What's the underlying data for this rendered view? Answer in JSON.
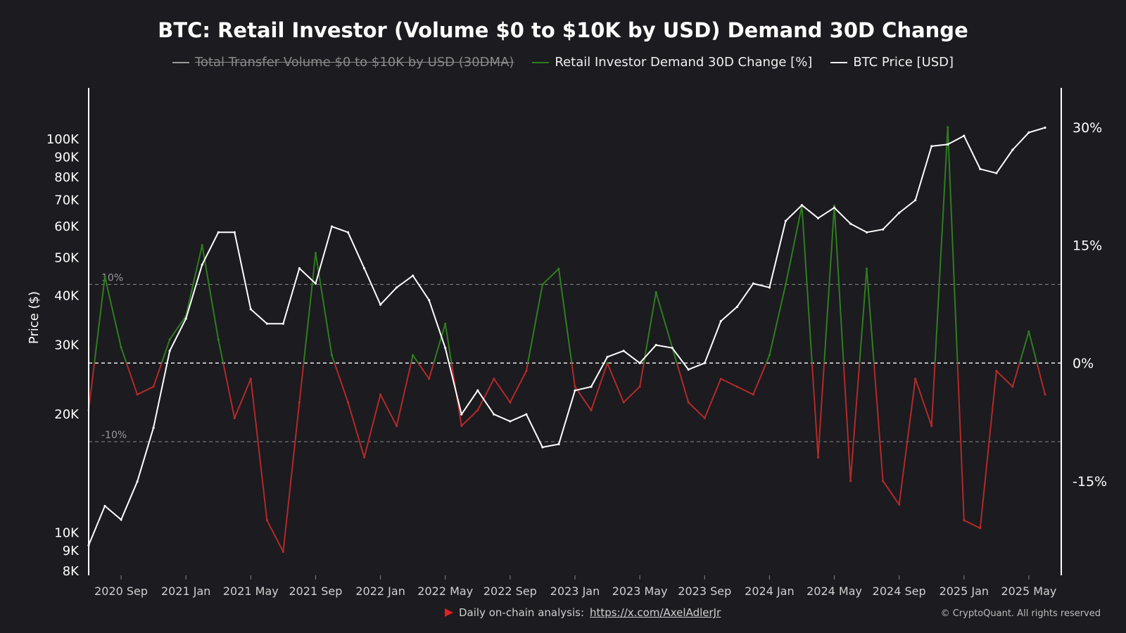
{
  "chart_data": {
    "type": "line",
    "title": "BTC: Retail Investor (Volume $0 to $10K by USD) Demand 30D Change",
    "legend": [
      {
        "label": "Total Transfer Volume $0 to $10K by USD (30DMA)",
        "color": "#9a9a9a",
        "visible": false
      },
      {
        "label": "Retail Investor Demand 30D Change [%]",
        "color": "#2f7d1e",
        "visible": true
      },
      {
        "label": "BTC Price [USD]",
        "color": "#ffffff",
        "visible": true
      }
    ],
    "ylabel_left": "Price ($)",
    "yticks_left": [
      {
        "label": "100K",
        "value": 100000
      },
      {
        "label": "90K",
        "value": 90000
      },
      {
        "label": "80K",
        "value": 80000
      },
      {
        "label": "70K",
        "value": 70000
      },
      {
        "label": "60K",
        "value": 60000
      },
      {
        "label": "50K",
        "value": 50000
      },
      {
        "label": "40K",
        "value": 40000
      },
      {
        "label": "30K",
        "value": 30000
      },
      {
        "label": "20K",
        "value": 20000
      },
      {
        "label": "10K",
        "value": 10000
      },
      {
        "label": "9K",
        "value": 9000
      },
      {
        "label": "8K",
        "value": 8000
      }
    ],
    "yticks_right": [
      {
        "label": "30%",
        "value": 30
      },
      {
        "label": "15%",
        "value": 15
      },
      {
        "label": "0%",
        "value": 0
      },
      {
        "label": "-15%",
        "value": -15
      }
    ],
    "ref_lines": [
      {
        "label": "10%",
        "value": 10
      },
      {
        "label": "-10%",
        "value": -10
      }
    ],
    "xticks": [
      "2020 Sep",
      "2021 Jan",
      "2021 May",
      "2021 Sep",
      "2022 Jan",
      "2022 May",
      "2022 Sep",
      "2023 Jan",
      "2023 May",
      "2023 Sep",
      "2024 Jan",
      "2024 May",
      "2024 Sep",
      "2025 Jan",
      "2025 May"
    ],
    "x_start": "2020-07",
    "x_end": "2025-07",
    "yscale_left": "log",
    "ylim_left": [
      7800,
      135000
    ],
    "ylim_right": [
      -27,
      35
    ],
    "series": [
      {
        "name": "BTC Price [USD]",
        "axis": "left",
        "x": [
          "2020-07",
          "2020-08",
          "2020-09",
          "2020-10",
          "2020-11",
          "2020-12",
          "2021-01",
          "2021-02",
          "2021-03",
          "2021-04",
          "2021-05",
          "2021-06",
          "2021-07",
          "2021-08",
          "2021-09",
          "2021-10",
          "2021-11",
          "2021-12",
          "2022-01",
          "2022-02",
          "2022-03",
          "2022-04",
          "2022-05",
          "2022-06",
          "2022-07",
          "2022-08",
          "2022-09",
          "2022-10",
          "2022-11",
          "2022-12",
          "2023-01",
          "2023-02",
          "2023-03",
          "2023-04",
          "2023-05",
          "2023-06",
          "2023-07",
          "2023-08",
          "2023-09",
          "2023-10",
          "2023-11",
          "2023-12",
          "2024-01",
          "2024-02",
          "2024-03",
          "2024-04",
          "2024-05",
          "2024-06",
          "2024-07",
          "2024-08",
          "2024-09",
          "2024-10",
          "2024-11",
          "2024-12",
          "2025-01",
          "2025-02",
          "2025-03",
          "2025-04",
          "2025-05",
          "2025-06"
        ],
        "values": [
          9300,
          11700,
          10800,
          13500,
          18500,
          29000,
          35000,
          48000,
          58000,
          58000,
          37000,
          34000,
          34000,
          47000,
          43000,
          60000,
          58000,
          47000,
          38000,
          42000,
          45000,
          39000,
          29500,
          20000,
          23000,
          20000,
          19200,
          20000,
          16500,
          16800,
          23000,
          23500,
          28000,
          29000,
          27000,
          30000,
          29500,
          26000,
          27000,
          34500,
          37500,
          43000,
          42000,
          62000,
          68000,
          63000,
          67000,
          61000,
          58000,
          59000,
          65000,
          70000,
          96000,
          97000,
          102000,
          84000,
          82000,
          94000,
          104000,
          107000
        ]
      },
      {
        "name": "Retail Investor Demand 30D Change [%]",
        "axis": "right",
        "x": [
          "2020-07",
          "2020-08",
          "2020-09",
          "2020-10",
          "2020-11",
          "2020-12",
          "2021-01",
          "2021-02",
          "2021-03",
          "2021-04",
          "2021-05",
          "2021-06",
          "2021-07",
          "2021-08",
          "2021-09",
          "2021-10",
          "2021-11",
          "2021-12",
          "2022-01",
          "2022-02",
          "2022-03",
          "2022-04",
          "2022-05",
          "2022-06",
          "2022-07",
          "2022-08",
          "2022-09",
          "2022-10",
          "2022-11",
          "2022-12",
          "2023-01",
          "2023-02",
          "2023-03",
          "2023-04",
          "2023-05",
          "2023-06",
          "2023-07",
          "2023-08",
          "2023-09",
          "2023-10",
          "2023-11",
          "2023-12",
          "2024-01",
          "2024-02",
          "2024-03",
          "2024-04",
          "2024-05",
          "2024-06",
          "2024-07",
          "2024-08",
          "2024-09",
          "2024-10",
          "2024-11",
          "2024-12",
          "2025-01",
          "2025-02",
          "2025-03",
          "2025-04",
          "2025-05",
          "2025-06"
        ],
        "values": [
          -6,
          11,
          2,
          -4,
          -3,
          3,
          6,
          15,
          3,
          -7,
          -2,
          -20,
          -24,
          -5,
          14,
          1,
          -5,
          -12,
          -4,
          -8,
          1,
          -2,
          5,
          -8,
          -6,
          -2,
          -5,
          -1,
          10,
          12,
          -3,
          -6,
          0,
          -5,
          -3,
          9,
          2,
          -5,
          -7,
          -2,
          -3,
          -4,
          1,
          10,
          20,
          -12,
          20,
          -15,
          12,
          -15,
          -18,
          -2,
          -8,
          30,
          -20,
          -21,
          -1,
          -3,
          4,
          -4
        ]
      }
    ]
  },
  "footer": {
    "text": "Daily on-chain analysis:",
    "link": "https://x.com/AxelAdlerJr",
    "copyright": "© CryptoQuant. All rights reserved"
  },
  "colors": {
    "background": "#1b1b20",
    "positive": "#2f7d1e",
    "negative": "#b32a27",
    "price": "#ffffff"
  }
}
